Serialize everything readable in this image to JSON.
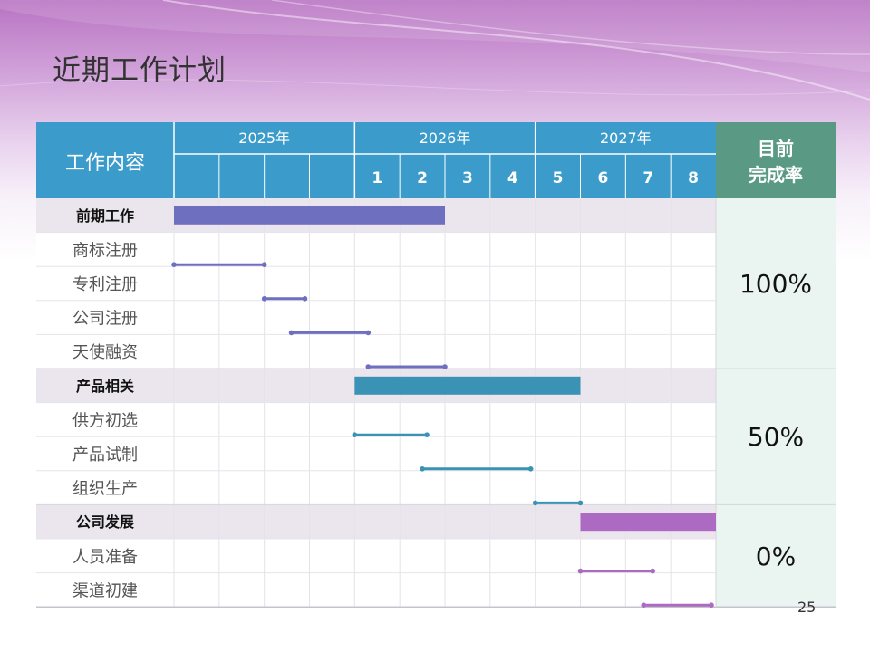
{
  "title": "近期工作计划",
  "page_number": "25",
  "header": {
    "task_column": "工作内容",
    "completion_column": "目前\n完成率"
  },
  "colors": {
    "header_blue": "#3b9ccb",
    "completion_green": "#5a9a84",
    "phase1": "#6f6fc0",
    "phase2": "#3a92b4",
    "phase3": "#ad6ac3"
  },
  "chart_data": {
    "type": "table",
    "years": [
      {
        "label": "2025年",
        "columns": 4
      },
      {
        "label": "2026年",
        "columns": 4
      },
      {
        "label": "2027年",
        "columns": 4
      }
    ],
    "columns": [
      "",
      "",
      "",
      "",
      "1",
      "2",
      "3",
      "4",
      "5",
      "6",
      "7",
      "8"
    ],
    "groups": [
      {
        "name": "前期工作",
        "span": [
          0,
          6.0
        ],
        "color": "#6f6fc0",
        "completion": "100%",
        "tasks": [
          {
            "name": "商标注册",
            "start": 0,
            "end": 2.0
          },
          {
            "name": "专利注册",
            "start": 2.0,
            "end": 2.9
          },
          {
            "name": "公司注册",
            "start": 2.6,
            "end": 4.3
          },
          {
            "name": "天使融资",
            "start": 4.3,
            "end": 6.0
          }
        ]
      },
      {
        "name": "产品相关",
        "span": [
          4.0,
          9.0
        ],
        "color": "#3a92b4",
        "completion": "50%",
        "tasks": [
          {
            "name": "供方初选",
            "start": 4.0,
            "end": 5.6
          },
          {
            "name": "产品试制",
            "start": 5.5,
            "end": 7.9
          },
          {
            "name": "组织生产",
            "start": 8.0,
            "end": 9.0
          }
        ]
      },
      {
        "name": "公司发展",
        "span": [
          9.0,
          12.0
        ],
        "color": "#ad6ac3",
        "completion": "0%",
        "tasks": [
          {
            "name": "人员准备",
            "start": 9.0,
            "end": 10.6
          },
          {
            "name": "渠道初建",
            "start": 10.4,
            "end": 11.9
          }
        ]
      }
    ]
  }
}
